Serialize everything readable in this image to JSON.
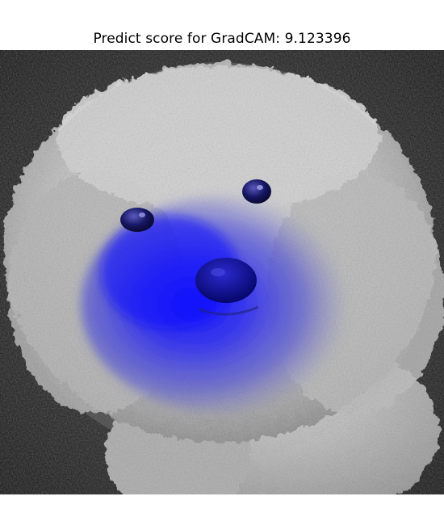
{
  "title": "Predict score for GradCAM: 9.123396",
  "image": {
    "subject": "white-fluffy-dog-with-gradcam-heatmap",
    "colors": {
      "background": "#1b1b1b",
      "fur": "#c9c9c9",
      "fur_light": "#e6e6e6",
      "fur_shadow": "#8a8a8a",
      "heatmap": "#0000ff",
      "eye": "#1a1a6a",
      "nose": "#0c0c7a"
    }
  }
}
